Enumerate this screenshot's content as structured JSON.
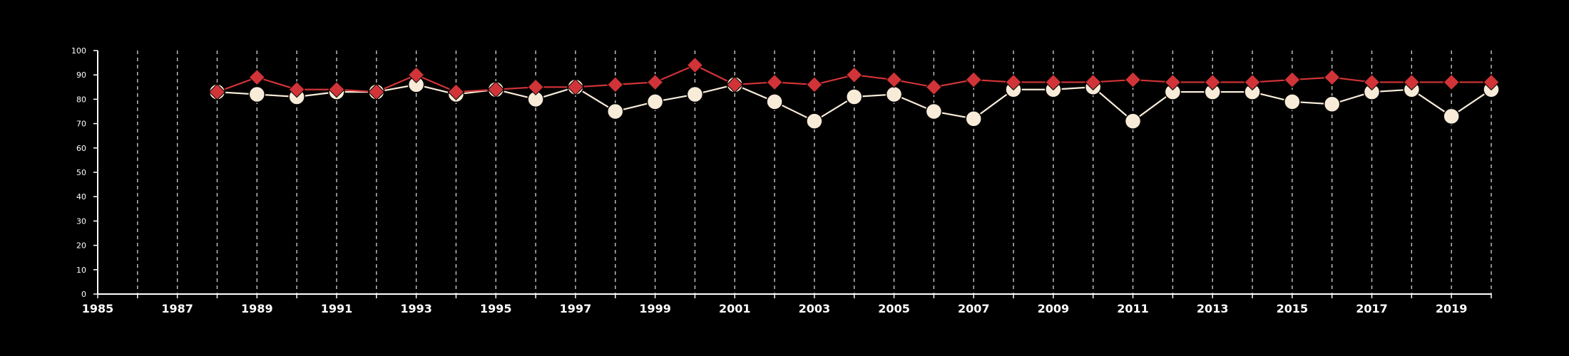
{
  "chart_data": {
    "type": "line",
    "title": "",
    "xlabel": "",
    "ylabel": "",
    "xlim": [
      1985,
      2020
    ],
    "ylim": [
      0,
      100
    ],
    "x_ticks": [
      "1985",
      "1987",
      "1989",
      "1991",
      "1993",
      "1995",
      "1997",
      "1999",
      "2001",
      "2003",
      "2005",
      "2007",
      "2009",
      "2011",
      "2013",
      "2015",
      "2017",
      "2019"
    ],
    "y_ticks": [
      "0",
      "10",
      "20",
      "30",
      "40",
      "50",
      "60",
      "70",
      "80",
      "90",
      "100"
    ],
    "vertical_gridlines": "dashed, every year 1986-2020",
    "x": [
      1988,
      1989,
      1990,
      1991,
      1992,
      1993,
      1994,
      1995,
      1996,
      1997,
      1998,
      1999,
      2000,
      2001,
      2002,
      2003,
      2004,
      2005,
      2006,
      2007,
      2008,
      2009,
      2010,
      2011,
      2012,
      2013,
      2014,
      2015,
      2016,
      2017,
      2018,
      2019,
      2020
    ],
    "series": [
      {
        "color": "#d13438",
        "marker": "diamond",
        "values": [
          83,
          89,
          84,
          84,
          83,
          90,
          83,
          84,
          85,
          85,
          86,
          87,
          94,
          86,
          87,
          86,
          90,
          88,
          85,
          88,
          87,
          87,
          87,
          88,
          87,
          87,
          87,
          88,
          89,
          87,
          87,
          87,
          87
        ]
      },
      {
        "color": "#f8ecd9",
        "marker": "circle",
        "values": [
          83,
          82,
          81,
          83,
          83,
          86,
          82,
          84,
          80,
          85,
          75,
          79,
          82,
          86,
          79,
          71,
          81,
          82,
          75,
          72,
          84,
          84,
          85,
          71,
          83,
          83,
          83,
          79,
          78,
          83,
          84,
          73,
          84
        ]
      }
    ]
  },
  "colors": {
    "background": "#000000",
    "axis": "#ffffff",
    "grid": "#c8c8c8"
  }
}
